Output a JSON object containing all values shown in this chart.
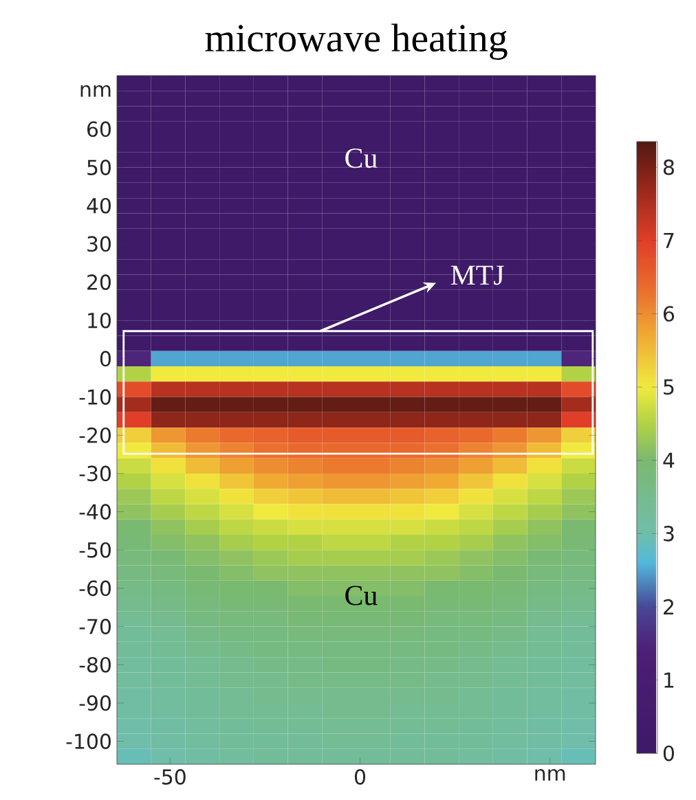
{
  "chart_data": {
    "type": "heatmap",
    "title": "microwave heating",
    "x": [
      -59.5,
      -50.5,
      -41.5,
      -32.5,
      -23.5,
      -14.5,
      -5.5,
      3.5,
      12.5,
      21.5,
      30.5,
      39.5,
      48.5,
      57.5
    ],
    "y": [
      72,
      68,
      64,
      60,
      56,
      52,
      48,
      44,
      40,
      36,
      32,
      28,
      24,
      20,
      16,
      12,
      8,
      4,
      0,
      -4,
      -8,
      -12,
      -16,
      -20,
      -24,
      -28,
      -32,
      -36,
      -40,
      -44,
      -48,
      -52,
      -56,
      -60,
      -64,
      -68,
      -72,
      -76,
      -80,
      -84,
      -88,
      -92,
      -96,
      -100,
      -104
    ],
    "xlim": [
      -64,
      62
    ],
    "ylim": [
      -106,
      74
    ],
    "xticks": [
      -50,
      0,
      {
        "value": 50,
        "label": "nm"
      }
    ],
    "yticks": [
      -100,
      -90,
      -80,
      -70,
      -60,
      -50,
      -40,
      -30,
      -20,
      -10,
      0,
      10,
      20,
      30,
      40,
      50,
      60,
      {
        "value": 70,
        "label": "nm"
      }
    ],
    "clim": [
      0,
      8.35
    ],
    "cticks": [
      0,
      1,
      2,
      3,
      4,
      5,
      6,
      7,
      8
    ],
    "annotations": [
      "Cu",
      "MTJ",
      "Cu"
    ],
    "cells": [
      [
        0,
        0,
        0,
        0,
        0,
        0,
        0,
        0,
        0,
        0,
        0,
        0,
        0,
        0
      ],
      [
        0,
        0,
        0,
        0,
        0,
        0,
        0,
        0,
        0,
        0,
        0,
        0,
        0,
        0
      ],
      [
        0,
        0,
        0,
        0,
        0,
        0,
        0,
        0,
        0,
        0,
        0,
        0,
        0,
        0
      ],
      [
        0,
        0,
        0,
        0,
        0,
        0,
        0,
        0,
        0,
        0,
        0,
        0,
        0,
        0
      ],
      [
        0,
        0,
        0,
        0,
        0,
        0,
        0,
        0,
        0,
        0,
        0,
        0,
        0,
        0
      ],
      [
        0,
        0,
        0,
        0,
        0,
        0,
        0,
        0,
        0,
        0,
        0,
        0,
        0,
        0
      ],
      [
        0,
        0,
        0,
        0,
        0,
        0,
        0,
        0,
        0,
        0,
        0,
        0,
        0,
        0
      ],
      [
        0,
        0,
        0,
        0,
        0,
        0,
        0,
        0,
        0,
        0,
        0,
        0,
        0,
        0
      ],
      [
        0,
        0,
        0,
        0,
        0,
        0,
        0,
        0,
        0,
        0,
        0,
        0,
        0,
        0
      ],
      [
        0,
        0,
        0,
        0,
        0,
        0,
        0,
        0,
        0,
        0,
        0,
        0,
        0,
        0
      ],
      [
        0,
        0,
        0,
        0,
        0,
        0,
        0,
        0,
        0,
        0,
        0,
        0,
        0,
        0
      ],
      [
        0,
        0,
        0,
        0,
        0,
        0,
        0,
        0,
        0,
        0,
        0,
        0,
        0,
        0
      ],
      [
        0,
        0,
        0,
        0,
        0,
        0,
        0,
        0,
        0,
        0,
        0,
        0,
        0,
        0
      ],
      [
        0,
        0,
        0,
        0,
        0,
        0,
        0,
        0,
        0,
        0,
        0,
        0,
        0,
        0
      ],
      [
        0,
        0,
        0,
        0,
        0,
        0,
        0,
        0,
        0,
        0,
        0,
        0,
        0,
        0
      ],
      [
        0,
        0,
        0,
        0,
        0,
        0,
        0,
        0,
        0,
        0,
        0,
        0,
        0,
        0
      ],
      [
        0,
        0,
        0,
        0,
        0,
        0,
        0,
        0,
        0,
        0,
        0,
        0,
        0,
        0
      ],
      [
        0,
        0,
        0,
        0,
        0,
        0,
        0,
        0,
        0,
        0,
        0,
        0,
        0,
        0
      ],
      [
        1.5,
        2.5,
        2.5,
        2.5,
        2.5,
        2.5,
        2.5,
        2.5,
        2.5,
        2.5,
        2.5,
        2.5,
        2.5,
        1.5
      ],
      [
        4.5,
        5,
        5,
        5,
        5,
        5,
        5,
        5,
        5,
        5,
        5,
        5,
        5,
        4.5
      ],
      [
        6.8,
        7.4,
        7.4,
        7.4,
        7.4,
        7.4,
        7.4,
        7.4,
        7.4,
        7.4,
        7.4,
        7.4,
        7.4,
        6.8
      ],
      [
        7.6,
        8.2,
        8.2,
        8.2,
        8.2,
        8.2,
        8.2,
        8.2,
        8.2,
        8.2,
        8.2,
        8.2,
        8.2,
        7.6
      ],
      [
        7,
        7.8,
        7.8,
        7.8,
        7.8,
        7.8,
        7.8,
        7.8,
        7.8,
        7.8,
        7.8,
        7.8,
        7.8,
        7
      ],
      [
        5.3,
        5.9,
        6.2,
        6.4,
        6.5,
        6.6,
        6.6,
        6.6,
        6.6,
        6.5,
        6.4,
        6.2,
        5.9,
        5.3
      ],
      [
        5,
        5.5,
        5.9,
        6.1,
        6.3,
        6.4,
        6.4,
        6.4,
        6.4,
        6.3,
        6.1,
        5.9,
        5.5,
        5
      ],
      [
        4.7,
        5.1,
        5.5,
        5.8,
        6,
        6.1,
        6.2,
        6.2,
        6.1,
        6,
        5.8,
        5.5,
        5.1,
        4.7
      ],
      [
        4.5,
        4.8,
        5.1,
        5.4,
        5.7,
        5.8,
        5.9,
        5.9,
        5.8,
        5.7,
        5.4,
        5.1,
        4.8,
        4.5
      ],
      [
        4.3,
        4.6,
        4.8,
        5.1,
        5.3,
        5.4,
        5.5,
        5.5,
        5.4,
        5.3,
        5.1,
        4.8,
        4.6,
        4.3
      ],
      [
        4.2,
        4.4,
        4.6,
        4.8,
        5,
        5.1,
        5.1,
        5.1,
        5.1,
        5,
        4.8,
        4.6,
        4.4,
        4.2
      ],
      [
        4,
        4.2,
        4.4,
        4.6,
        4.7,
        4.8,
        4.8,
        4.8,
        4.8,
        4.7,
        4.6,
        4.4,
        4.2,
        4
      ],
      [
        3.9,
        4.1,
        4.2,
        4.4,
        4.5,
        4.5,
        4.6,
        4.6,
        4.5,
        4.5,
        4.4,
        4.2,
        4.1,
        3.9
      ],
      [
        3.8,
        3.9,
        4.1,
        4.2,
        4.3,
        4.4,
        4.4,
        4.4,
        4.4,
        4.3,
        4.2,
        4.1,
        3.9,
        3.8
      ],
      [
        3.7,
        3.8,
        4,
        4.1,
        4.2,
        4.2,
        4.2,
        4.2,
        4.2,
        4.2,
        4.1,
        4,
        3.8,
        3.7
      ],
      [
        3.6,
        3.7,
        3.9,
        4,
        4,
        4.1,
        4.1,
        4.1,
        4.1,
        4,
        4,
        3.9,
        3.7,
        3.6
      ],
      [
        3.5,
        3.6,
        3.8,
        3.9,
        3.9,
        4,
        4,
        4,
        4,
        3.9,
        3.9,
        3.8,
        3.6,
        3.5
      ],
      [
        3.4,
        3.5,
        3.7,
        3.8,
        3.8,
        3.9,
        3.9,
        3.9,
        3.9,
        3.8,
        3.8,
        3.7,
        3.5,
        3.4
      ],
      [
        3.3,
        3.4,
        3.6,
        3.7,
        3.7,
        3.8,
        3.8,
        3.8,
        3.8,
        3.7,
        3.7,
        3.6,
        3.4,
        3.3
      ],
      [
        3.3,
        3.4,
        3.5,
        3.6,
        3.7,
        3.7,
        3.7,
        3.7,
        3.7,
        3.7,
        3.6,
        3.5,
        3.4,
        3.3
      ],
      [
        3.2,
        3.3,
        3.4,
        3.5,
        3.6,
        3.6,
        3.7,
        3.7,
        3.6,
        3.6,
        3.5,
        3.4,
        3.3,
        3.2
      ],
      [
        3.2,
        3.3,
        3.4,
        3.5,
        3.5,
        3.6,
        3.6,
        3.6,
        3.6,
        3.5,
        3.5,
        3.4,
        3.3,
        3.2
      ],
      [
        3.1,
        3.2,
        3.3,
        3.4,
        3.5,
        3.5,
        3.5,
        3.5,
        3.5,
        3.5,
        3.4,
        3.3,
        3.2,
        3.1
      ],
      [
        3.1,
        3.2,
        3.3,
        3.4,
        3.4,
        3.4,
        3.5,
        3.5,
        3.4,
        3.4,
        3.4,
        3.3,
        3.2,
        3.1
      ],
      [
        3,
        3.1,
        3.2,
        3.3,
        3.4,
        3.4,
        3.4,
        3.4,
        3.4,
        3.4,
        3.3,
        3.2,
        3.1,
        3
      ],
      [
        3,
        3.1,
        3.2,
        3.3,
        3.3,
        3.3,
        3.4,
        3.4,
        3.3,
        3.3,
        3.3,
        3.2,
        3.1,
        3
      ],
      [
        2.9,
        3,
        3.1,
        3.2,
        3.3,
        3.3,
        3.3,
        3.3,
        3.3,
        3.3,
        3.2,
        3.1,
        3,
        2.9
      ]
    ]
  }
}
